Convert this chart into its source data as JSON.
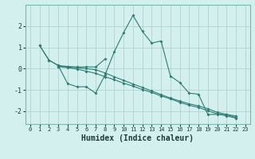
{
  "xlabel": "Humidex (Indice chaleur)",
  "background_color": "#d4f0ee",
  "line_color": "#2e7d72",
  "grid_color": "#b0d4d0",
  "x_values": [
    0,
    1,
    2,
    3,
    4,
    5,
    6,
    7,
    8,
    9,
    10,
    11,
    12,
    13,
    14,
    15,
    16,
    17,
    18,
    19,
    20,
    21,
    22,
    23
  ],
  "line_main": [
    null,
    1.1,
    0.4,
    0.15,
    -0.7,
    -0.85,
    -0.85,
    -1.15,
    -0.3,
    0.8,
    1.7,
    2.5,
    1.75,
    1.2,
    1.3,
    -0.35,
    -0.65,
    -1.15,
    -1.2,
    -2.15,
    -2.15,
    -2.15,
    -2.3,
    null
  ],
  "line_upper": [
    null,
    1.1,
    0.4,
    0.15,
    0.1,
    0.08,
    0.08,
    0.08,
    0.45,
    null,
    null,
    null,
    null,
    null,
    null,
    null,
    null,
    null,
    null,
    null,
    null,
    null,
    null,
    null
  ],
  "line_trend1": [
    null,
    null,
    null,
    0.1,
    0.08,
    0.05,
    0.0,
    -0.05,
    -0.2,
    -0.38,
    -0.55,
    -0.72,
    -0.88,
    -1.05,
    -1.22,
    -1.38,
    -1.52,
    -1.65,
    -1.75,
    -1.88,
    -2.05,
    -2.15,
    -2.22,
    null
  ],
  "line_trend2": [
    null,
    null,
    null,
    0.1,
    0.05,
    -0.02,
    -0.12,
    -0.22,
    -0.38,
    -0.52,
    -0.68,
    -0.82,
    -0.98,
    -1.12,
    -1.28,
    -1.42,
    -1.58,
    -1.72,
    -1.82,
    -1.98,
    -2.12,
    -2.22,
    -2.32,
    null
  ],
  "ylim": [
    -2.6,
    3.0
  ],
  "xlim": [
    -0.5,
    23.5
  ],
  "yticks": [
    -2,
    -1,
    0,
    1,
    2
  ]
}
